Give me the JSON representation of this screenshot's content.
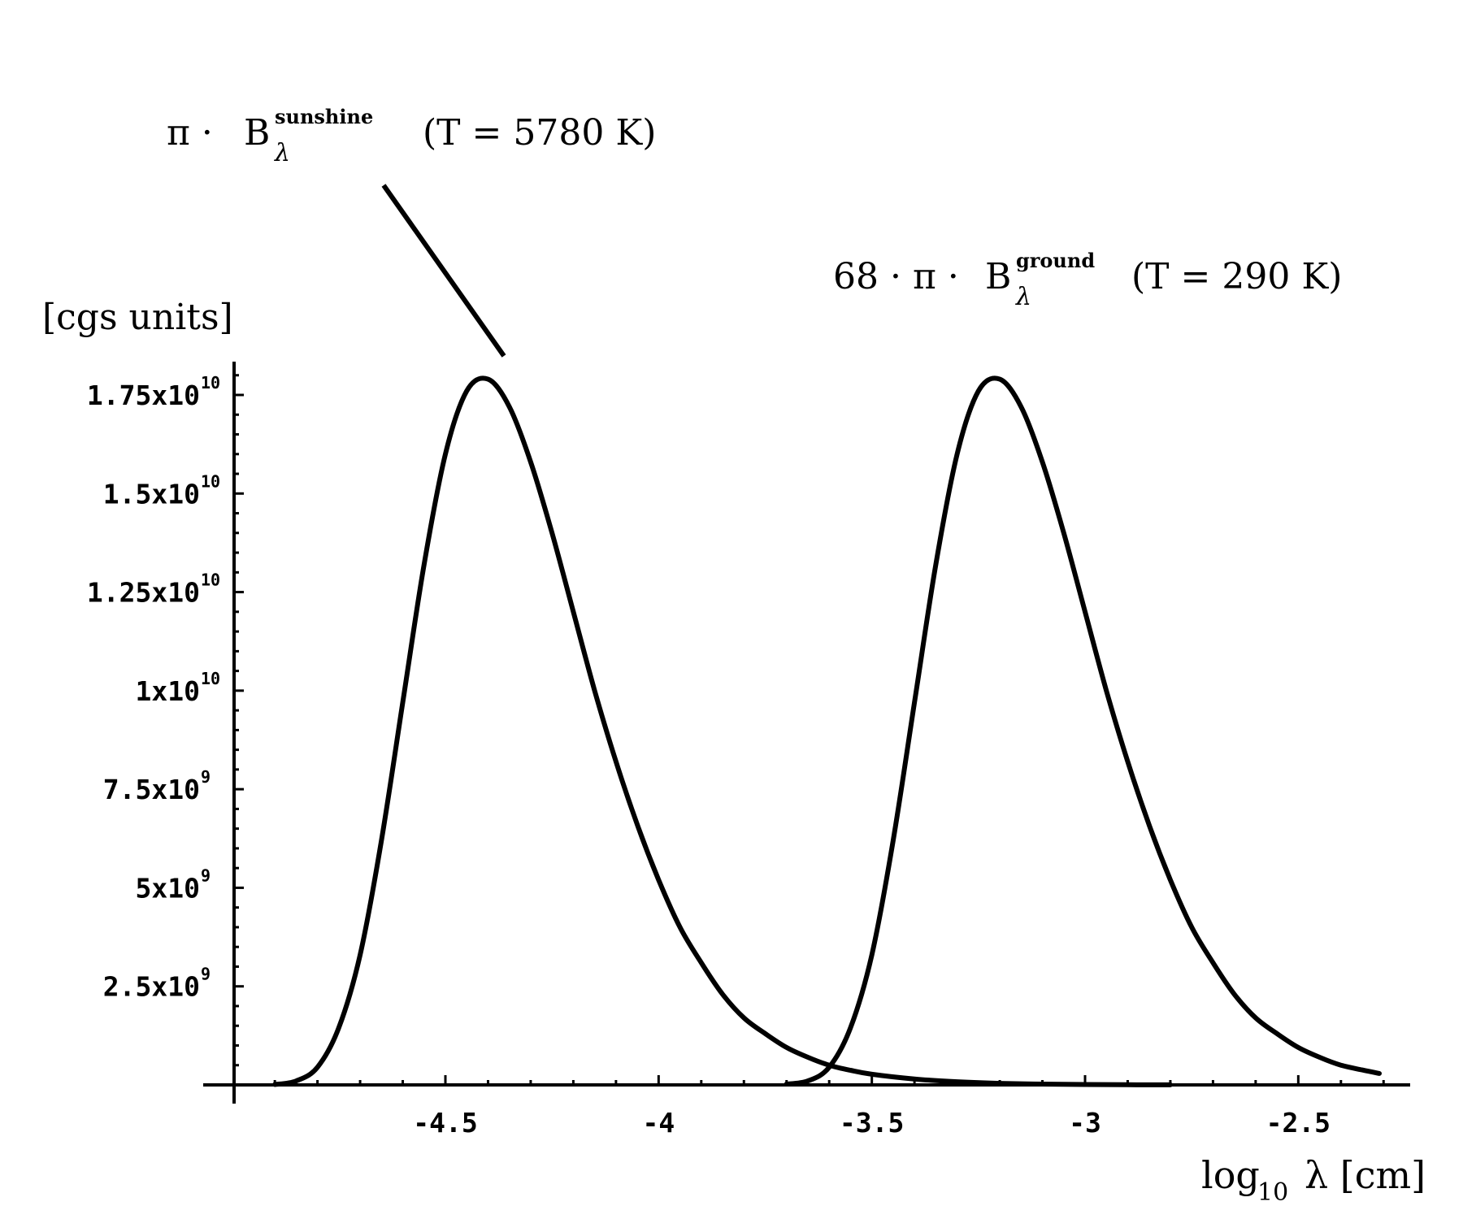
{
  "chart_data": {
    "type": "line",
    "xlabel": "log10 λ [cm]",
    "xlabel_parts": {
      "main": "log",
      "sub": "10",
      "rest": "λ [cm]"
    },
    "ylabel": "[cgs units]",
    "xlim": [
      -4.97,
      -2.3
    ],
    "ylim": [
      0,
      18000000000.0
    ],
    "x_major_ticks": [
      -4.5,
      -4,
      -3.5,
      -3,
      -2.5
    ],
    "x_tick_labels": [
      "-4.5",
      "-4",
      "-3.5",
      "-3",
      "-2.5"
    ],
    "y_major_ticks": [
      2500000000.0,
      5000000000.0,
      7500000000.0,
      10000000000.0,
      12500000000.0,
      15000000000.0,
      17500000000.0
    ],
    "y_tick_labels": [
      {
        "base": "2.5x10",
        "exp": "9"
      },
      {
        "base": "5x10",
        "exp": "9"
      },
      {
        "base": "7.5x10",
        "exp": "9"
      },
      {
        "base": "1x10",
        "exp": "10"
      },
      {
        "base": "1.25x10",
        "exp": "10"
      },
      {
        "base": "1.5x10",
        "exp": "10"
      },
      {
        "base": "1.75x10",
        "exp": "10"
      }
    ],
    "grid": false,
    "series": [
      {
        "name": "π · B_λ^sunshine (T = 5780 K)",
        "temperature_K": 5780,
        "scale_factor": 1,
        "x": [
          -4.9,
          -4.85,
          -4.8,
          -4.75,
          -4.7,
          -4.65,
          -4.6,
          -4.55,
          -4.5,
          -4.45,
          -4.4,
          -4.35,
          -4.3,
          -4.25,
          -4.2,
          -4.15,
          -4.1,
          -4.05,
          -4.0,
          -3.95,
          -3.9,
          -3.85,
          -3.8,
          -3.75,
          -3.7,
          -3.65,
          -3.6,
          -3.55,
          -3.5,
          -3.4,
          -3.3,
          -3.2,
          -3.1,
          -3.0,
          -2.9,
          -2.8
        ],
        "values": [
          10000000.0,
          100000000.0,
          450000000.0,
          1450000000.0,
          3300000000.0,
          6200000000.0,
          9700000000.0,
          13200000000.0,
          16000000000.0,
          17600000000.0,
          17900000000.0,
          17200000000.0,
          15800000000.0,
          14000000000.0,
          12000000000.0,
          10000000000.0,
          8200000000.0,
          6600000000.0,
          5200000000.0,
          4000000000.0,
          3100000000.0,
          2300000000.0,
          1700000000.0,
          1300000000.0,
          950000000.0,
          700000000.0,
          500000000.0,
          370000000.0,
          270000000.0,
          150000000.0,
          80000000.0,
          40000000.0,
          20000000.0,
          10000000.0,
          5000000.0,
          2000000.0
        ]
      },
      {
        "name": "68 · π · B_λ^ground (T = 290 K)",
        "temperature_K": 290,
        "scale_factor": 68,
        "x": [
          -3.7,
          -3.65,
          -3.6,
          -3.55,
          -3.5,
          -3.45,
          -3.4,
          -3.35,
          -3.3,
          -3.25,
          -3.2,
          -3.15,
          -3.1,
          -3.05,
          -3.0,
          -2.95,
          -2.9,
          -2.85,
          -2.8,
          -2.75,
          -2.7,
          -2.65,
          -2.6,
          -2.55,
          -2.5,
          -2.45,
          -2.4,
          -2.35,
          -2.31
        ],
        "values": [
          20000000.0,
          100000000.0,
          450000000.0,
          1450000000.0,
          3300000000.0,
          6200000000.0,
          9700000000.0,
          13200000000.0,
          16000000000.0,
          17600000000.0,
          17900000000.0,
          17200000000.0,
          15800000000.0,
          14000000000.0,
          12000000000.0,
          10000000000.0,
          8200000000.0,
          6600000000.0,
          5200000000.0,
          4000000000.0,
          3100000000.0,
          2300000000.0,
          1700000000.0,
          1300000000.0,
          950000000.0,
          700000000.0,
          500000000.0,
          380000000.0,
          290000000.0
        ]
      }
    ],
    "annotations": {
      "sun": {
        "prefix": "π ·",
        "B": "B",
        "sup": "sunshine",
        "sub": "λ",
        "paren": "(T = 5780 K)"
      },
      "ground": {
        "prefix": "68 · π ·",
        "B": "B",
        "sup": "ground",
        "sub": "λ",
        "paren": "(T = 290 K)"
      }
    }
  }
}
